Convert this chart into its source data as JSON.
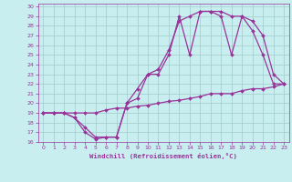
{
  "xlabel": "Windchill (Refroidissement éolien,°C)",
  "bg_color": "#c8eef0",
  "grid_color": "#a0cccc",
  "line_color": "#993399",
  "xlim": [
    -0.5,
    23.5
  ],
  "ylim": [
    16,
    30.3
  ],
  "xticks": [
    0,
    1,
    2,
    3,
    4,
    5,
    6,
    7,
    8,
    9,
    10,
    11,
    12,
    13,
    14,
    15,
    16,
    17,
    18,
    19,
    20,
    21,
    22,
    23
  ],
  "yticks": [
    16,
    17,
    18,
    19,
    20,
    21,
    22,
    23,
    24,
    25,
    26,
    27,
    28,
    29,
    30
  ],
  "series": [
    {
      "x": [
        0,
        1,
        2,
        3,
        4,
        5,
        6,
        7,
        8,
        9,
        10,
        11,
        12,
        13,
        14,
        15,
        16,
        17,
        18,
        19,
        20,
        21,
        22,
        23
      ],
      "y": [
        19,
        19,
        19,
        18.5,
        17,
        16.3,
        16.5,
        16.5,
        20,
        21.5,
        23,
        23,
        25,
        29,
        25,
        29.5,
        29.5,
        29,
        25,
        29,
        27.5,
        25,
        22,
        22
      ]
    },
    {
      "x": [
        0,
        1,
        2,
        3,
        4,
        5,
        6,
        7,
        8,
        9,
        10,
        11,
        12,
        13,
        14,
        15,
        16,
        17,
        18,
        19,
        20,
        21,
        22,
        23
      ],
      "y": [
        19,
        19,
        19,
        18.5,
        17.5,
        16.5,
        16.5,
        16.5,
        20,
        20.5,
        23,
        23.5,
        25.5,
        28.5,
        29,
        29.5,
        29.5,
        29.5,
        29,
        29,
        28.5,
        27,
        23,
        22
      ]
    },
    {
      "x": [
        0,
        1,
        2,
        3,
        4,
        5,
        6,
        7,
        8,
        9,
        10,
        11,
        12,
        13,
        14,
        15,
        16,
        17,
        18,
        19,
        20,
        21,
        22,
        23
      ],
      "y": [
        19,
        19,
        19,
        19,
        19,
        19,
        19.3,
        19.5,
        19.5,
        19.7,
        19.8,
        20,
        20.2,
        20.3,
        20.5,
        20.7,
        21,
        21,
        21,
        21.3,
        21.5,
        21.5,
        21.7,
        22
      ]
    }
  ],
  "marker": "D",
  "markersize": 2.0,
  "linewidth": 0.9
}
